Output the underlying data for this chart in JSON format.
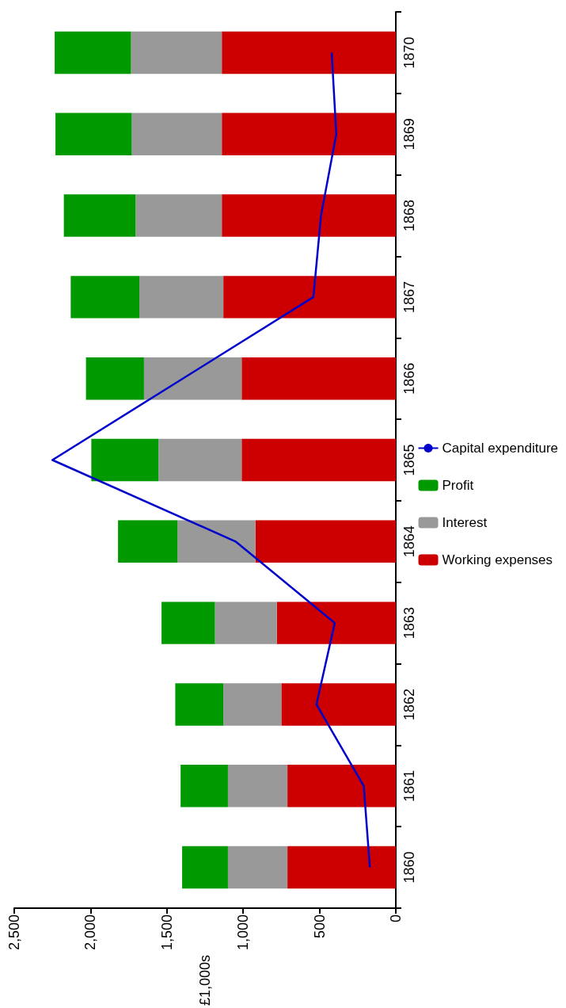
{
  "chart_data": {
    "type": "bar",
    "orientation": "horizontal",
    "stacked": true,
    "categories": [
      "1870",
      "1869",
      "1868",
      "1867",
      "1866",
      "1865",
      "1864",
      "1863",
      "1862",
      "1861",
      "1860"
    ],
    "series": [
      {
        "name": "Working expenses",
        "color": "#cc0000",
        "values": [
          1140,
          1140,
          1140,
          1130,
          1010,
          1010,
          920,
          780,
          750,
          710,
          710
        ]
      },
      {
        "name": "Interest",
        "color": "#999999",
        "values": [
          595,
          590,
          565,
          550,
          640,
          545,
          510,
          405,
          380,
          390,
          390
        ]
      },
      {
        "name": "Profit",
        "color": "#009900",
        "values": [
          500,
          500,
          470,
          450,
          380,
          440,
          390,
          350,
          315,
          310,
          300
        ]
      },
      {
        "name": "Capital expenditure",
        "type": "line",
        "color": "#0000cc",
        "values": [
          420,
          390,
          490,
          540,
          null,
          2250,
          1050,
          400,
          520,
          210,
          170
        ]
      }
    ],
    "ylabel": "£1,000s",
    "xlim": [
      2500,
      0
    ],
    "xticks": [
      {
        "value": 2500,
        "label": "2,500"
      },
      {
        "value": 2000,
        "label": "2,000"
      },
      {
        "value": 1500,
        "label": "1,500"
      },
      {
        "value": 1000,
        "label": "1,000"
      },
      {
        "value": 500,
        "label": "500"
      },
      0
    ],
    "legend": "right",
    "grid": false,
    "marker": "none"
  }
}
